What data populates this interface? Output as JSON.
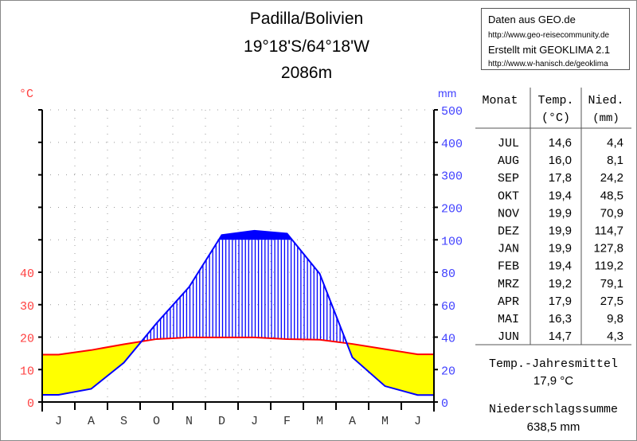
{
  "title": {
    "line1": "Padilla/Bolivien",
    "line2": "19°18'S/64°18'W",
    "line3": "2086m"
  },
  "source_box": {
    "line1": "Daten aus GEO.de",
    "line2": "http://www.geo-reisecommunity.de",
    "line3": "Erstellt mit GEOKLIMA 2.1",
    "line4": "http://www.w-hanisch.de/geoklima"
  },
  "colors": {
    "temperature": "#ff0000",
    "precipitation": "#0000ff",
    "arid": "#ffff00",
    "humid_hatch": "#0000ff",
    "temp_axis_labels": "#ff4040",
    "precip_axis_labels": "#4040ff"
  },
  "chart_data": {
    "type": "line",
    "chart_style": "Walter-Lieth climate diagram",
    "x_categories": [
      "J",
      "A",
      "S",
      "O",
      "N",
      "D",
      "J",
      "F",
      "M",
      "A",
      "M",
      "J"
    ],
    "y_left": {
      "unit_label": "°C",
      "ticks": [
        0,
        10,
        20,
        30,
        40
      ],
      "range": [
        0,
        50
      ]
    },
    "y_right": {
      "unit_label": "mm",
      "ticks": [
        0,
        20,
        40,
        60,
        80,
        100,
        200,
        300,
        400,
        500
      ],
      "range": [
        0,
        500
      ],
      "scale_note": "20 mm = 10 °C up to 100 mm, compressed above 100 mm"
    },
    "grid": true,
    "series": [
      {
        "name": "Temp.",
        "unit": "°C",
        "values": [
          14.6,
          16.0,
          17.8,
          19.4,
          19.9,
          19.9,
          19.9,
          19.4,
          19.2,
          17.9,
          16.3,
          14.7
        ]
      },
      {
        "name": "Nied.",
        "unit": "mm",
        "values": [
          4.4,
          8.1,
          24.2,
          48.5,
          70.9,
          114.7,
          127.8,
          119.2,
          79.1,
          27.5,
          9.8,
          4.3
        ]
      }
    ]
  },
  "table": {
    "headers": {
      "month": "Monat",
      "temp": "Temp.",
      "temp_unit": "(°C)",
      "precip": "Nied.",
      "precip_unit": "(mm)"
    },
    "rows": [
      {
        "month": "JUL",
        "temp": "14,6",
        "precip": "4,4"
      },
      {
        "month": "AUG",
        "temp": "16,0",
        "precip": "8,1"
      },
      {
        "month": "SEP",
        "temp": "17,8",
        "precip": "24,2"
      },
      {
        "month": "OKT",
        "temp": "19,4",
        "precip": "48,5"
      },
      {
        "month": "NOV",
        "temp": "19,9",
        "precip": "70,9"
      },
      {
        "month": "DEZ",
        "temp": "19,9",
        "precip": "114,7"
      },
      {
        "month": "JAN",
        "temp": "19,9",
        "precip": "127,8"
      },
      {
        "month": "FEB",
        "temp": "19,4",
        "precip": "119,2"
      },
      {
        "month": "MRZ",
        "temp": "19,2",
        "precip": "79,1"
      },
      {
        "month": "APR",
        "temp": "17,9",
        "precip": "27,5"
      },
      {
        "month": "MAI",
        "temp": "16,3",
        "precip": "9,8"
      },
      {
        "month": "JUN",
        "temp": "14,7",
        "precip": "4,3"
      }
    ],
    "annual_mean_label": "Temp.-Jahresmittel",
    "annual_mean_value": "17,9 °C",
    "annual_sum_label": "Niederschlagssumme",
    "annual_sum_value": "638,5 mm"
  }
}
